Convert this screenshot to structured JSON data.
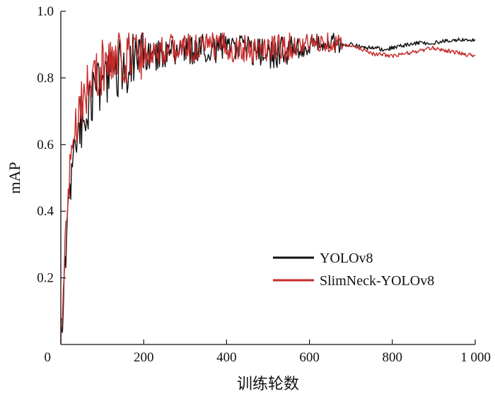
{
  "chart_data": {
    "type": "line",
    "title": "",
    "xlabel": "训练轮数",
    "ylabel": "mAP",
    "xlim": [
      0,
      1000
    ],
    "ylim": [
      0,
      1.0
    ],
    "x_ticks": [
      0,
      200,
      400,
      600,
      800,
      1000
    ],
    "x_tick_labels": [
      "0",
      "200",
      "400",
      "600",
      "800",
      "1 000"
    ],
    "y_ticks": [
      0.2,
      0.4,
      0.6,
      0.8,
      1.0
    ],
    "y_tick_labels": [
      "0.2",
      "0.4",
      "0.6",
      "0.8",
      "1.0"
    ],
    "grid": false,
    "legend_position": "lower-right",
    "series": [
      {
        "name": "YOLOv8",
        "color": "#111111",
        "x": [
          0,
          5,
          10,
          15,
          20,
          25,
          30,
          40,
          50,
          60,
          70,
          80,
          90,
          100,
          120,
          140,
          160,
          180,
          200,
          220,
          240,
          260,
          280,
          300,
          320,
          340,
          360,
          380,
          400,
          420,
          440,
          460,
          480,
          500,
          520,
          540,
          560,
          580,
          600,
          620,
          640,
          660,
          680,
          700,
          720,
          740,
          760,
          780,
          800,
          820,
          840,
          860,
          880,
          900,
          920,
          940,
          960,
          980,
          1000
        ],
        "y": [
          0.01,
          0.08,
          0.22,
          0.33,
          0.45,
          0.52,
          0.58,
          0.64,
          0.67,
          0.7,
          0.73,
          0.75,
          0.77,
          0.79,
          0.81,
          0.83,
          0.84,
          0.85,
          0.86,
          0.865,
          0.87,
          0.875,
          0.88,
          0.885,
          0.885,
          0.89,
          0.89,
          0.89,
          0.89,
          0.885,
          0.885,
          0.88,
          0.875,
          0.87,
          0.875,
          0.88,
          0.885,
          0.89,
          0.9,
          0.905,
          0.91,
          0.905,
          0.9,
          0.9,
          0.895,
          0.89,
          0.89,
          0.885,
          0.89,
          0.895,
          0.9,
          0.905,
          0.905,
          0.905,
          0.91,
          0.91,
          0.915,
          0.915,
          0.912
        ]
      },
      {
        "name": "SlimNeck-YOLOv8",
        "color": "#c62828",
        "x": [
          0,
          5,
          10,
          15,
          20,
          25,
          30,
          40,
          50,
          60,
          70,
          80,
          90,
          100,
          120,
          140,
          160,
          180,
          200,
          220,
          240,
          260,
          280,
          300,
          320,
          340,
          360,
          380,
          400,
          420,
          440,
          460,
          480,
          500,
          520,
          540,
          560,
          580,
          600,
          620,
          640,
          660,
          680,
          700,
          720,
          740,
          760,
          780,
          800,
          820,
          840,
          860,
          880,
          900,
          920,
          940,
          960,
          980,
          1000
        ],
        "y": [
          0.01,
          0.12,
          0.28,
          0.4,
          0.52,
          0.58,
          0.64,
          0.7,
          0.73,
          0.76,
          0.78,
          0.8,
          0.82,
          0.83,
          0.85,
          0.86,
          0.87,
          0.875,
          0.88,
          0.88,
          0.885,
          0.885,
          0.89,
          0.89,
          0.89,
          0.89,
          0.895,
          0.895,
          0.895,
          0.89,
          0.89,
          0.89,
          0.885,
          0.885,
          0.89,
          0.89,
          0.895,
          0.9,
          0.905,
          0.905,
          0.91,
          0.905,
          0.9,
          0.895,
          0.89,
          0.88,
          0.87,
          0.87,
          0.865,
          0.87,
          0.875,
          0.88,
          0.885,
          0.89,
          0.885,
          0.88,
          0.875,
          0.87,
          0.868
        ]
      }
    ]
  }
}
